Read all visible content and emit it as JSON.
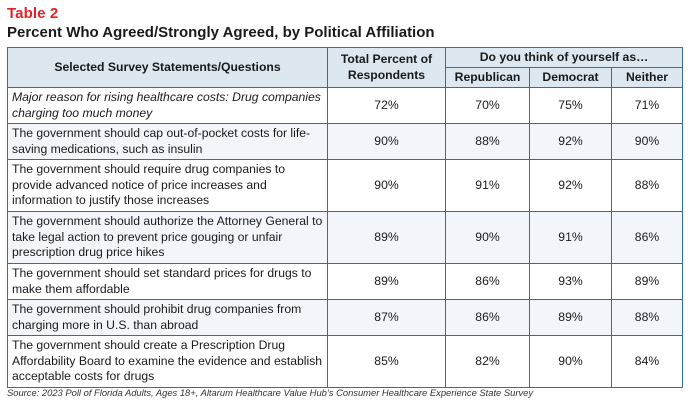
{
  "table_number": "Table 2",
  "title": "Percent Who Agreed/Strongly Agreed, by Political Affiliation",
  "headers": {
    "statements": "Selected Survey Statements/Questions",
    "total": "Total Percent of Respondents",
    "group": "Do you think of yourself as…",
    "republican": "Republican",
    "democrat": "Democrat",
    "neither": "Neither"
  },
  "rows": [
    {
      "statement": "Major reason for rising healthcare costs: Drug companies charging too much money",
      "total": "72%",
      "republican": "70%",
      "democrat": "75%",
      "neither": "71%"
    },
    {
      "statement": "The government should cap out-of-pocket costs for life-saving medications, such as insulin",
      "total": "90%",
      "republican": "88%",
      "democrat": "92%",
      "neither": "90%"
    },
    {
      "statement": "The government should require drug companies to provide advanced notice of price increases and information to justify those increases",
      "total": "90%",
      "republican": "91%",
      "democrat": "92%",
      "neither": "88%"
    },
    {
      "statement": "The government should authorize the Attorney General to take legal action to prevent price gouging or unfair prescription drug price hikes",
      "total": "89%",
      "republican": "90%",
      "democrat": "91%",
      "neither": "86%"
    },
    {
      "statement": "The government should set standard prices for drugs to make them affordable",
      "total": "89%",
      "republican": "86%",
      "democrat": "93%",
      "neither": "89%"
    },
    {
      "statement": "The government should prohibit drug companies from charging more in U.S. than abroad",
      "total": "87%",
      "republican": "86%",
      "democrat": "89%",
      "neither": "88%"
    },
    {
      "statement": "The government should create a Prescription Drug Affordability Board to examine the evidence and establish acceptable costs for drugs",
      "total": "85%",
      "republican": "82%",
      "democrat": "90%",
      "neither": "84%"
    }
  ],
  "source": "Source: 2023 Poll of Florida Adults, Ages 18+, Altarum Healthcare Value Hub’s Consumer Healthcare Experience State Survey"
}
